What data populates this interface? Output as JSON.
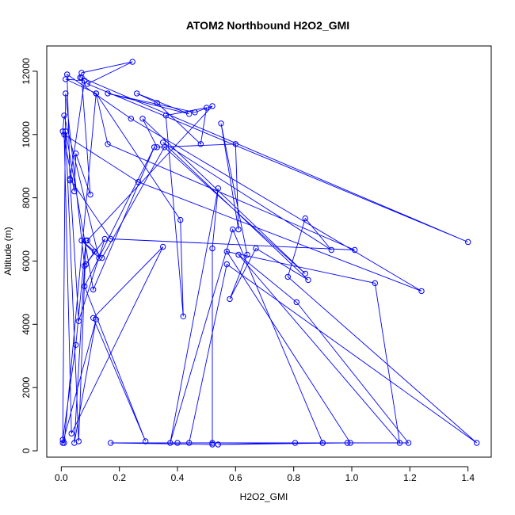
{
  "chart_data": {
    "type": "line",
    "title": "ATOM2 Northbound H2O2_GMI",
    "xlabel": "H2O2_GMI",
    "ylabel": "Altitude (m)",
    "xlim": [
      -0.05,
      1.48
    ],
    "ylim": [
      -200,
      12800
    ],
    "xticks": [
      "0.0",
      "0.2",
      "0.4",
      "0.6",
      "0.8",
      "1.0",
      "1.2",
      "1.4"
    ],
    "yticks": [
      "0",
      "2000",
      "4000",
      "6000",
      "8000",
      "10000",
      "12000"
    ],
    "grid": false,
    "marker": "open-circle",
    "series_color": "#0000ff",
    "series": [
      {
        "x": [
          0.065,
          0.07,
          0.245,
          0.09,
          1.4,
          0.07,
          0.1,
          0.05,
          0.045,
          0.005,
          0.01,
          0.13,
          0.07,
          0.115,
          0.085,
          0.15,
          0.06,
          0.03,
          0.17,
          1.01,
          0.16,
          0.12,
          0.015,
          0.08,
          0.03,
          0.02,
          0.24,
          1.24,
          0.265,
          0.01,
          0.035,
          0.35,
          0.11,
          0.29,
          0.08,
          0.32,
          0.11,
          0.015,
          0.06,
          0.085,
          0.05,
          0.005,
          0.015,
          0.08,
          0.045,
          0.12,
          0.005,
          0.01,
          0.12,
          0.41,
          0.42,
          0.36,
          0.5,
          0.48,
          0.33,
          0.26,
          0.44,
          0.16,
          0.46,
          0.52,
          0.09,
          0.14,
          0.355,
          0.84,
          0.28,
          0.33,
          0.6,
          0.61,
          0.55,
          0.64,
          0.58,
          0.67,
          0.85,
          0.35,
          0.93,
          0.84,
          0.78,
          1.43,
          0.57,
          0.44,
          0.995,
          0.57,
          1.08,
          1.165,
          0.61,
          0.81,
          1.195,
          0.9,
          0.59,
          0.375,
          0.54,
          0.52,
          0.52,
          0.9,
          0.4,
          0.985,
          0.54,
          0.805,
          0.17,
          0.52
        ],
        "y": [
          11800,
          11950,
          12300,
          11600,
          6600,
          11800,
          8100,
          9400,
          8200,
          10100,
          10600,
          6100,
          6650,
          6300,
          5900,
          6700,
          4100,
          8600,
          6700,
          6350,
          9700,
          11300,
          11750,
          11700,
          8550,
          11900,
          10500,
          5050,
          8500,
          10000,
          550,
          6450,
          4200,
          300,
          5200,
          9600,
          5100,
          10100,
          300,
          6650,
          3350,
          350,
          11300,
          5850,
          250,
          4150,
          250,
          250,
          11300,
          7300,
          4250,
          10600,
          10850,
          9700,
          11000,
          11300,
          10650,
          11300,
          10700,
          10900,
          6650,
          6100,
          9600,
          5600,
          10500,
          9600,
          9700,
          7000,
          10350,
          6200,
          4800,
          6400,
          5400,
          9750,
          6350,
          7350,
          5500,
          250,
          5900,
          250,
          250,
          6300,
          5300,
          250,
          6200,
          4700,
          250,
          250,
          7000,
          250,
          8300,
          6400,
          250,
          250,
          250,
          250,
          200,
          250,
          250,
          200
        ]
      }
    ]
  }
}
